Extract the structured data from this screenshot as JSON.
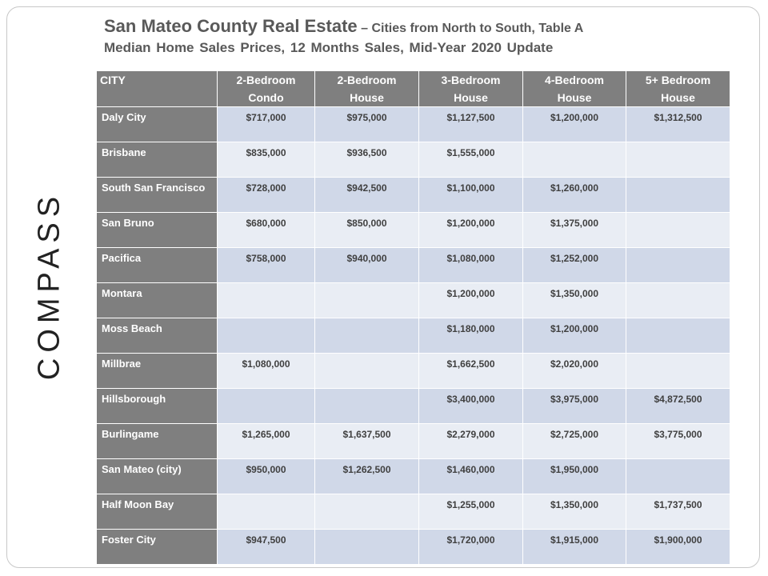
{
  "header": {
    "title": "San Mateo County Real Estate",
    "title_suffix": "– Cities from North to South, Table A",
    "subtitle": "Median Home Sales Prices, 12 Months Sales, Mid-Year 2020 Update"
  },
  "brand": "COMPASS",
  "table": {
    "columns": [
      [
        "CITY"
      ],
      [
        "2-Bedroom",
        "Condo"
      ],
      [
        "2-Bedroom",
        "House"
      ],
      [
        "3-Bedroom",
        "House"
      ],
      [
        "4-Bedroom",
        "House"
      ],
      [
        "5+ Bedroom",
        "House"
      ]
    ],
    "rows": [
      [
        "Daly City",
        "$717,000",
        "$975,000",
        "$1,127,500",
        "$1,200,000",
        "$1,312,500"
      ],
      [
        "Brisbane",
        "$835,000",
        "$936,500",
        "$1,555,000",
        null,
        null
      ],
      [
        "South San Francisco",
        "$728,000",
        "$942,500",
        "$1,100,000",
        "$1,260,000",
        null
      ],
      [
        "San Bruno",
        "$680,000",
        "$850,000",
        "$1,200,000",
        "$1,375,000",
        null
      ],
      [
        "Pacifica",
        "$758,000",
        "$940,000",
        "$1,080,000",
        "$1,252,000",
        null
      ],
      [
        "Montara",
        null,
        null,
        "$1,200,000",
        "$1,350,000",
        null
      ],
      [
        "Moss Beach",
        null,
        null,
        "$1,180,000",
        "$1,200,000",
        null
      ],
      [
        "Millbrae",
        "$1,080,000",
        null,
        "$1,662,500",
        "$2,020,000",
        null
      ],
      [
        "Hillsborough",
        null,
        null,
        "$3,400,000",
        "$3,975,000",
        "$4,872,500"
      ],
      [
        "Burlingame",
        "$1,265,000",
        "$1,637,500",
        "$2,279,000",
        "$2,725,000",
        "$3,775,000"
      ],
      [
        "San Mateo (city)",
        "$950,000",
        "$1,262,500",
        "$1,460,000",
        "$1,950,000",
        null
      ],
      [
        "Half Moon Bay",
        null,
        null,
        "$1,255,000",
        "$1,350,000",
        "$1,737,500"
      ],
      [
        "Foster City",
        "$947,500",
        null,
        "$1,720,000",
        "$1,915,000",
        "$1,900,000"
      ]
    ]
  }
}
